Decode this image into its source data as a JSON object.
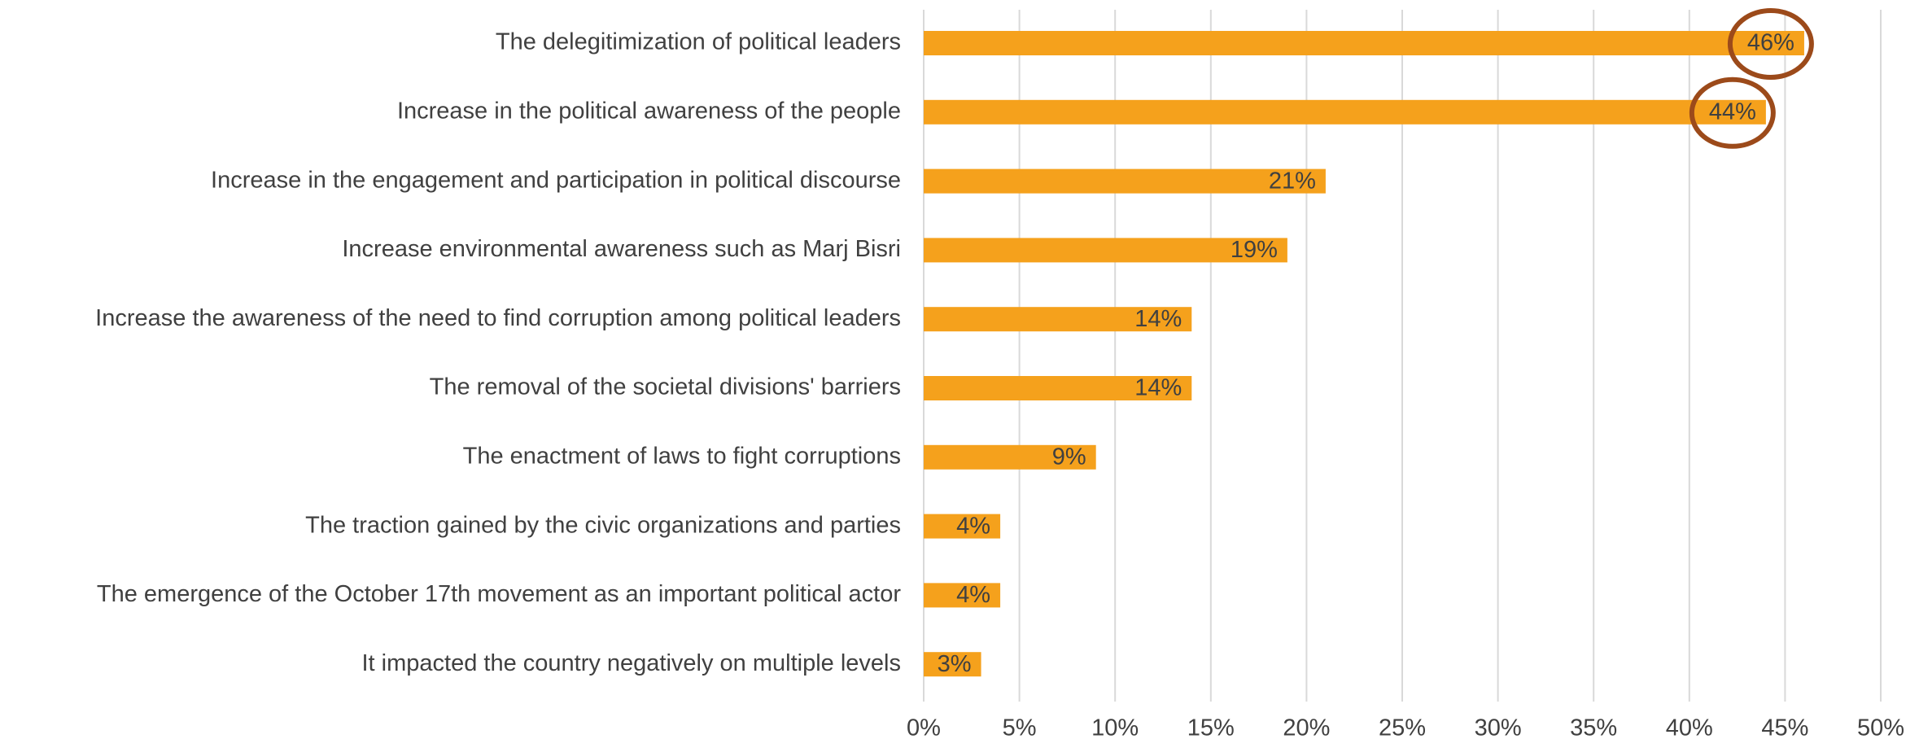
{
  "chart_data": {
    "type": "bar",
    "orientation": "horizontal",
    "categories": [
      "The delegitimization of political leaders",
      "Increase in the political awareness of the people",
      "Increase in the engagement and participation in political discourse",
      "Increase environmental awareness such as Marj Bisri",
      "Increase the awareness of the need to find corruption among political leaders",
      "The removal of the societal divisions' barriers",
      "The enactment of laws to fight corruptions",
      "The traction gained by the civic organizations and parties",
      "The emergence of the October 17th movement as an important political actor",
      "It impacted the country negatively on multiple levels"
    ],
    "values": [
      46,
      44,
      21,
      19,
      14,
      14,
      9,
      4,
      4,
      3
    ],
    "value_labels": [
      "46%",
      "44%",
      "21%",
      "19%",
      "14%",
      "14%",
      "9%",
      "4%",
      "4%",
      "3%"
    ],
    "color": "#f5a11c",
    "xlim": [
      0,
      50
    ],
    "xticks": [
      {
        "value": 0,
        "label": "0%"
      },
      {
        "value": 5,
        "label": "5%"
      },
      {
        "value": 10,
        "label": "10%"
      },
      {
        "value": 15,
        "label": "15%"
      },
      {
        "value": 20,
        "label": "20%"
      },
      {
        "value": 25,
        "label": "25%"
      },
      {
        "value": 30,
        "label": "30%"
      },
      {
        "value": 35,
        "label": "35%"
      },
      {
        "value": 40,
        "label": "40%"
      },
      {
        "value": 45,
        "label": "45%"
      },
      {
        "value": 50,
        "label": "50%"
      }
    ],
    "grid": true
  }
}
